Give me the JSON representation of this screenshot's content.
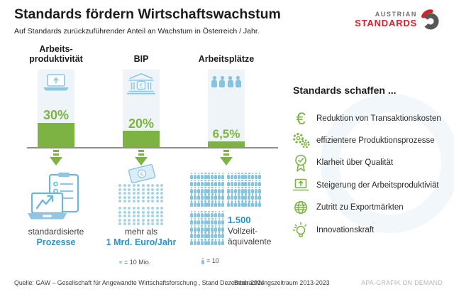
{
  "header": {
    "title": "Standards fördern Wirtschaftswachstum",
    "subtitle": "Auf Standards zurückzuführender Anteil an Wachstum in Österreich / Jahr.",
    "logo": {
      "line1": "AUSTRIAN",
      "line2": "STANDARDS"
    }
  },
  "chart_data": {
    "type": "bar",
    "title": "Standards fördern Wirtschaftswachstum",
    "subtitle": "Auf Standards zurückzuführender Anteil an Wachstum in Österreich / Jahr.",
    "categories": [
      "Arbeitsproduktivität",
      "BIP",
      "Arbeitsplätze"
    ],
    "values": [
      30,
      20,
      6.5
    ],
    "value_labels": [
      "30%",
      "20%",
      "6,5%"
    ],
    "pictogram_units": {
      "money_dot": "10 Mio.",
      "person": "10"
    },
    "money_dots_total": 100,
    "persons_total": 150,
    "outcomes": [
      "standardisierte Prozesse",
      "mehr als 1 Mrd. Euro/Jahr",
      "1.500 Vollzeitäquivalente"
    ]
  },
  "columns": [
    {
      "label": "Arbeits-\nproduktivität",
      "value": 30,
      "value_label": "30%",
      "icon": "laptop-up-arrow-icon"
    },
    {
      "label": "BIP",
      "value": 20,
      "value_label": "20%",
      "icon": "bank-euro-icon"
    },
    {
      "label": "Arbeitsplätze",
      "value": 6.5,
      "value_label": "6,5%",
      "icon": "people-icon"
    }
  ],
  "captions": {
    "col1": {
      "line1": "standardisierte",
      "line2": "Prozesse"
    },
    "col2": {
      "line1": "mehr als",
      "line2": "1 Mrd. Euro/Jahr"
    },
    "col3": {
      "value": "1.500",
      "line1": "Vollzeit-",
      "line2": "äquivalente"
    }
  },
  "money_grid": {
    "cols": 10,
    "rows": 10,
    "gap_after_row": 5
  },
  "people_grid": {
    "blocks": [
      {
        "cols": 10,
        "rows": 5
      },
      {
        "cols": 10,
        "rows": 5
      },
      {
        "cols": 10,
        "rows": 5
      }
    ]
  },
  "legend": {
    "money_label": "= 10 Mio.",
    "person_label": "= 10"
  },
  "panel": {
    "title": "Standards schaffen ...",
    "items": [
      {
        "icon": "euro-icon",
        "label": "Reduktion von Transaktionskosten"
      },
      {
        "icon": "gears-icon",
        "label": "effizientere Produktionsprozesse"
      },
      {
        "icon": "quality-seal-icon",
        "label": "Klarheit über Qualität"
      },
      {
        "icon": "laptop-arrow-icon",
        "label": "Steigerung der Arbeitsproduktiviät"
      },
      {
        "icon": "globe-icon",
        "label": "Zutritt zu Exportmärkten"
      },
      {
        "icon": "lightbulb-icon",
        "label": "Innovationskraft"
      }
    ]
  },
  "footer": {
    "source": "Quelle: GAW – Gesellschaft für Angewandte Wirtschaftsforschung , Stand Dezember 2024",
    "period": "Beobachtungszeitraum 2013-2023",
    "credit": "APA-GRAFIK ON DEMAND"
  },
  "colors": {
    "green": "#7db342",
    "blue": "#2695cf",
    "light_blue": "#8fc7e2",
    "brand_red": "#d6222b"
  }
}
